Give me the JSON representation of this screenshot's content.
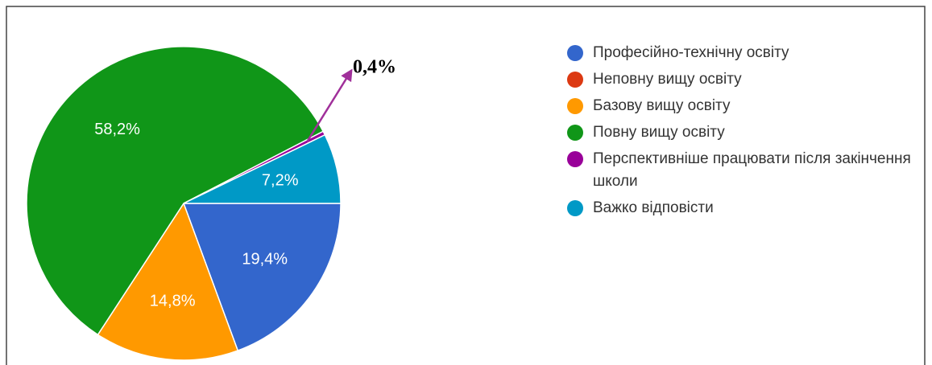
{
  "chart_data": {
    "type": "pie",
    "categories": [
      "Професійно-технічну освіту",
      "Неповну вищу освіту",
      "Базову вищу освіту",
      "Повну вищу освіту",
      "Перспективніше працювати після закінчення школи",
      "Важко відповісти"
    ],
    "values": [
      19.4,
      0,
      14.8,
      58.2,
      0.4,
      7.2
    ],
    "value_labels": [
      "19,4%",
      null,
      "14,8%",
      "58,2%",
      "0,4%",
      "7,2%"
    ],
    "colors": [
      "#3366cc",
      "#dc3912",
      "#ff9900",
      "#109618",
      "#990099",
      "#0099c6"
    ]
  }
}
